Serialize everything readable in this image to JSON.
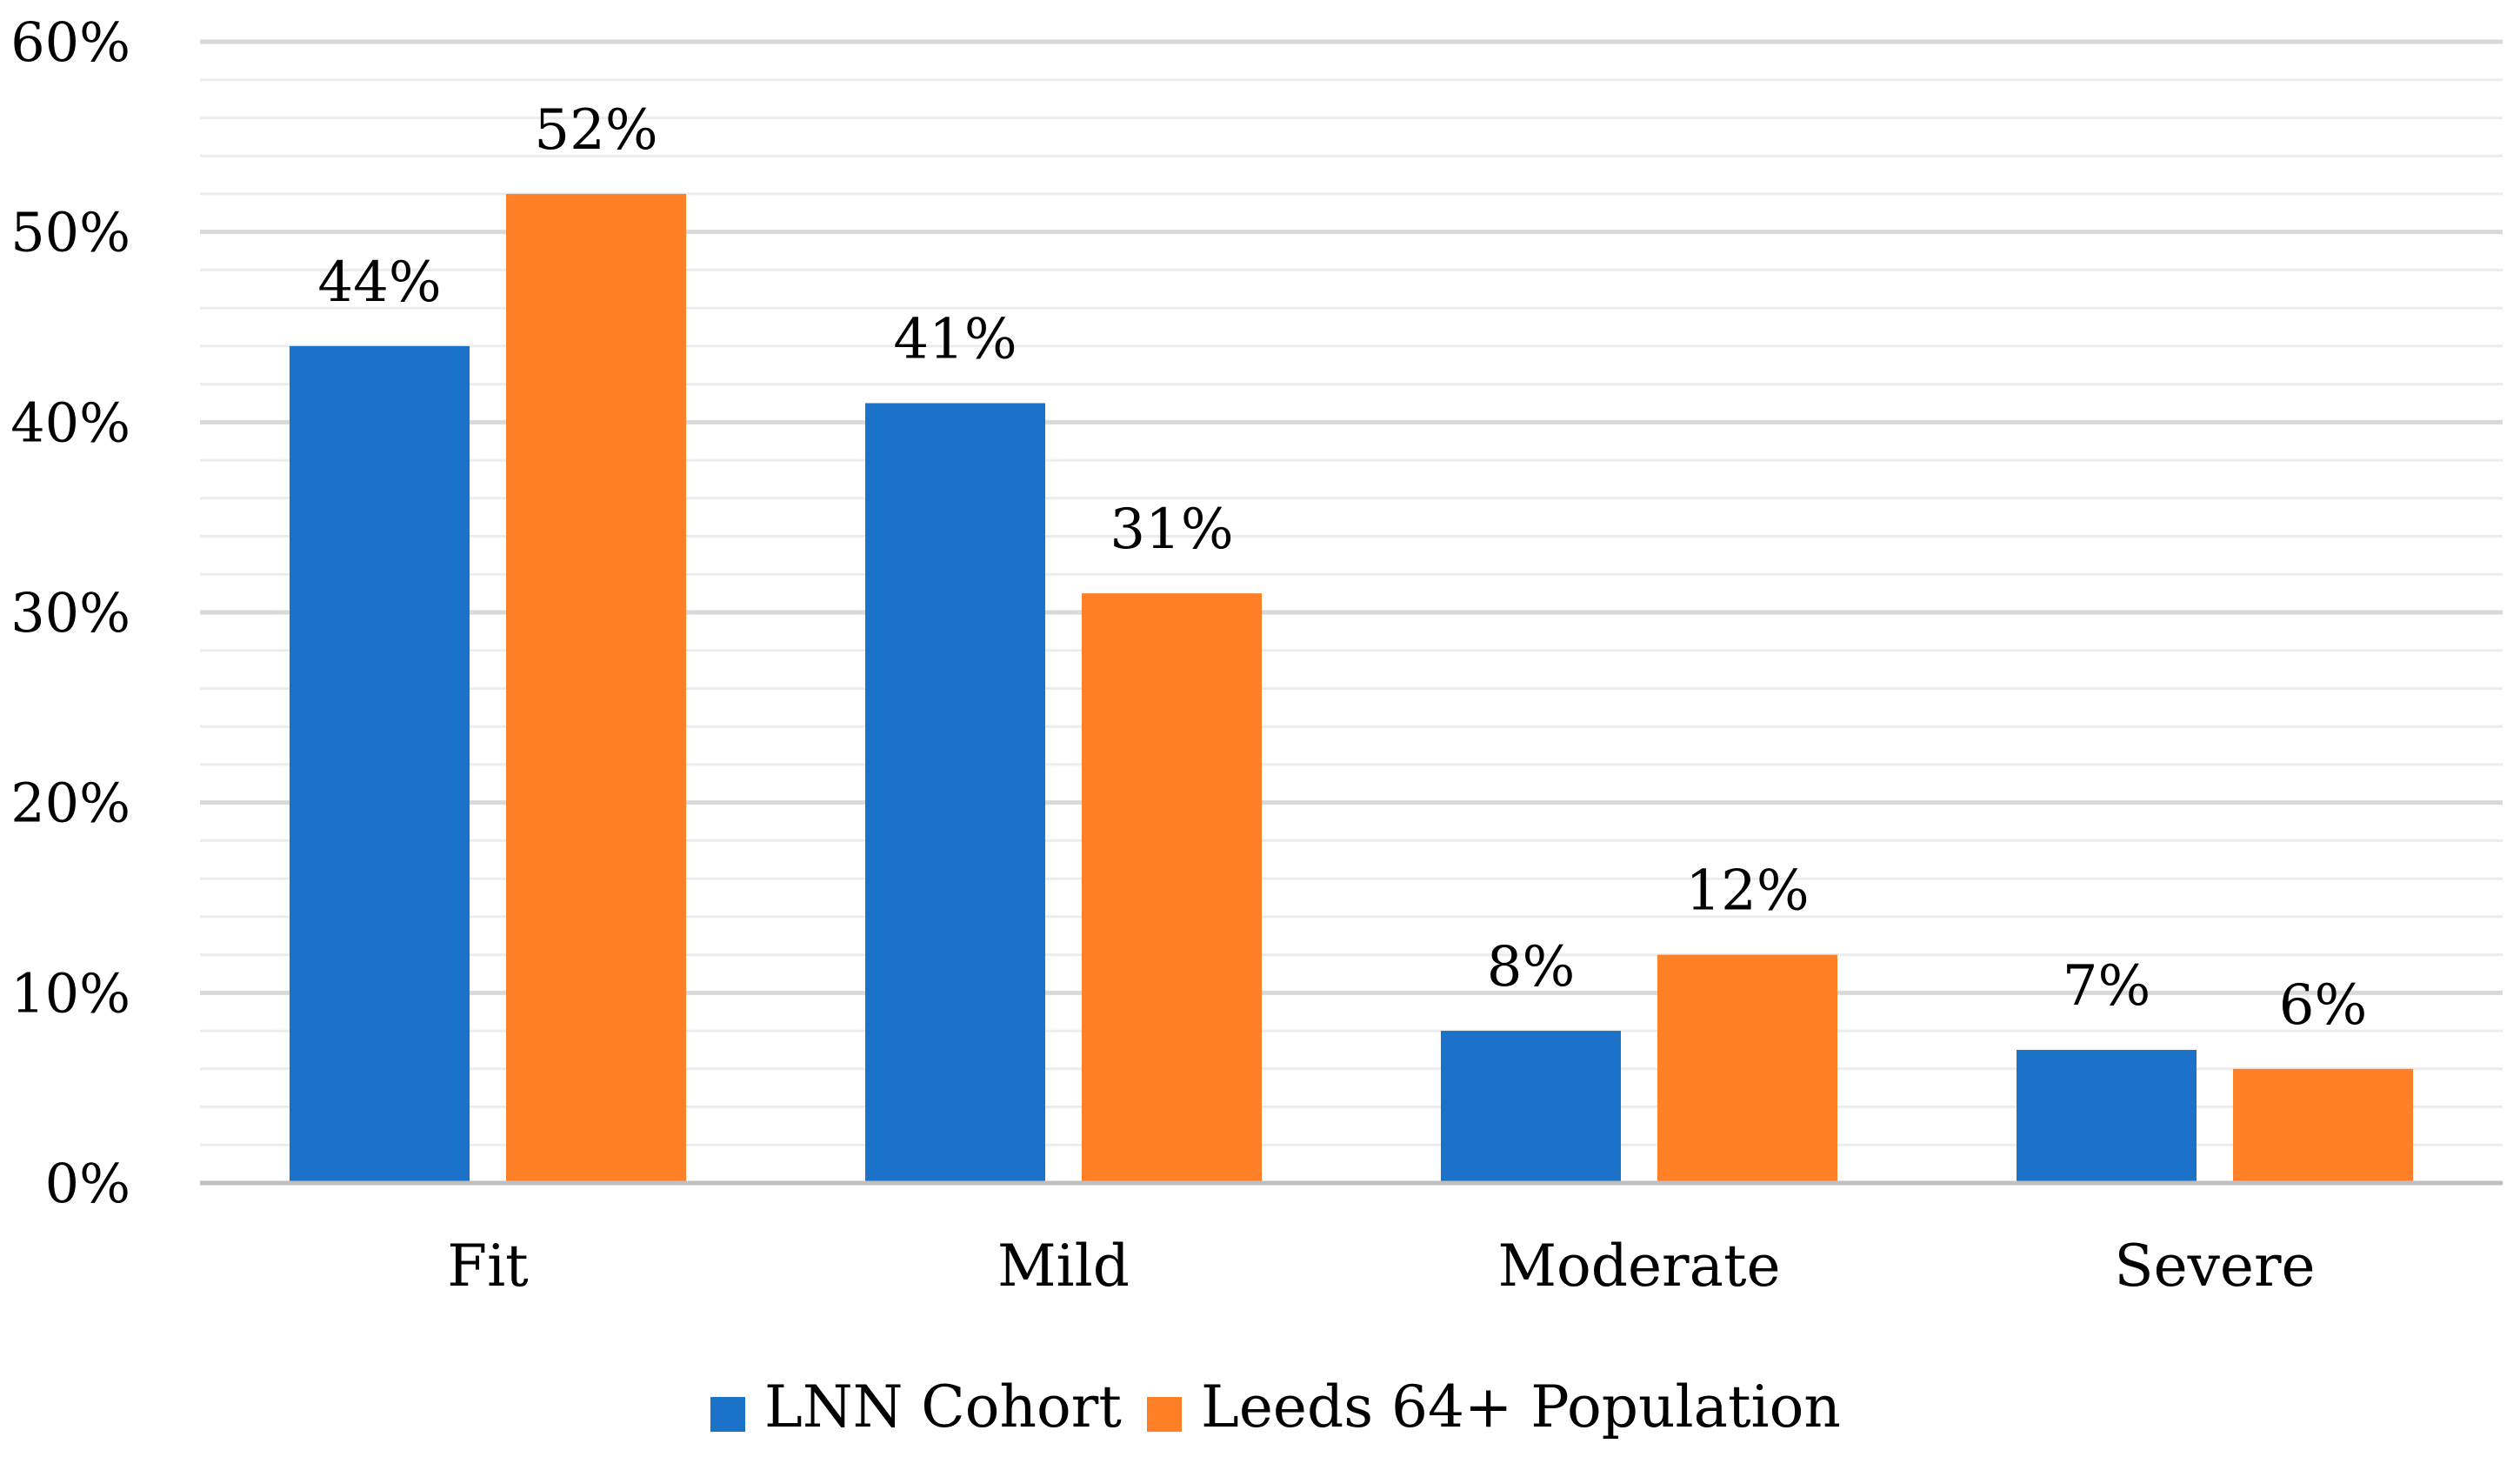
{
  "chart_data": {
    "type": "bar",
    "title": "",
    "xlabel": "",
    "ylabel": "",
    "categories": [
      "Fit",
      "Mild",
      "Moderate",
      "Severe"
    ],
    "series": [
      {
        "name": "LNN Cohort",
        "values": [
          44,
          41,
          8,
          7
        ],
        "color": "#1a73c8"
      },
      {
        "name": "Leeds 64+ Population",
        "values": [
          52,
          31,
          12,
          6
        ],
        "color": "#ff8026"
      }
    ],
    "data_labels": [
      [
        "44%",
        "41%",
        "8%",
        "7%"
      ],
      [
        "52%",
        "31%",
        "12%",
        "6%"
      ]
    ],
    "ylim": [
      0,
      60
    ],
    "y_ticks": [
      0,
      10,
      20,
      30,
      40,
      50,
      60
    ],
    "y_tick_labels": [
      "0%",
      "10%",
      "20%",
      "30%",
      "40%",
      "50%",
      "60%"
    ],
    "minor_gridlines_per_major": 5,
    "grid": true,
    "legend_position": "bottom-center",
    "colors": {
      "major_grid": "#d9d9d9",
      "minor_grid": "#ececec",
      "axis": "#bfbfbf"
    }
  }
}
